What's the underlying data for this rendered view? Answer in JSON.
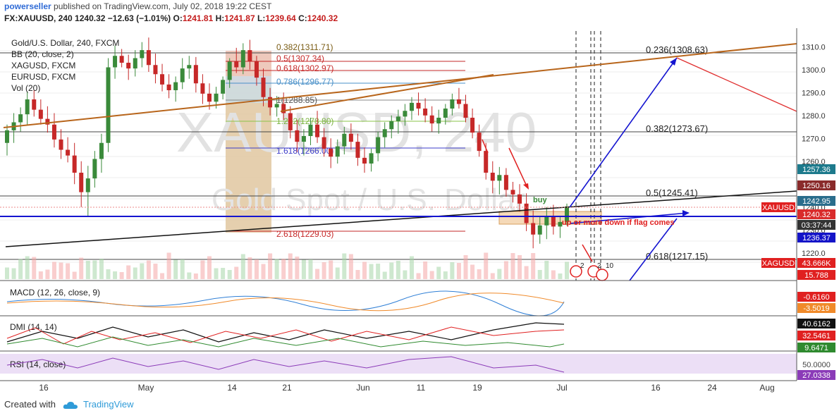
{
  "header": {
    "author": "powerseller",
    "published": "published on TradingView.com, July 02, 2018 19:22 CEST",
    "symbol": "FX:XAUUSD, 240",
    "last": "1240.32",
    "change": "−12.63 (−1.01%)",
    "o_label": "O:",
    "o": "1241.81",
    "h_label": "H:",
    "h": "1241.87",
    "l_label": "L:",
    "l": "1239.64",
    "c_label": "C:",
    "c": "1240.32"
  },
  "legend": [
    "Gold/U.S. Dollar, 240, FXCM",
    "BB (20, close, 2)",
    "XAGUSD, FXCM",
    "EURUSD, FXCM",
    "Vol (20)"
  ],
  "watermark": {
    "symbol": "XAUUSD, 240",
    "name": "Gold Spot / U.S. Dollar"
  },
  "colors": {
    "up": "#3a8a3a",
    "down": "#c62828",
    "fib": "#e0c080",
    "trend_brown": "#b8651b",
    "trend_blue": "#1414d0",
    "accent": "#2f9bd8"
  },
  "fib_left": [
    "0.382(1311.71)",
    "0.5(1307.34)",
    "0.618(1302.97)",
    "0.786(1296.77)",
    "1(1288.85)",
    "1.272(1278.80)",
    "1.618(1266.00)",
    "2.618(1229.03)"
  ],
  "fib_right": [
    "0.236(1308.63)",
    "0.382(1273.67)",
    "0.5(1245.41)",
    "0.618(1217.15)"
  ],
  "annotations": {
    "buy": "buy",
    "note": "up or more down if flag comes"
  },
  "event_labels": [
    "2",
    "2",
    "10"
  ],
  "price_tags": [
    {
      "text": "1257.36",
      "bg": "#1d7a8c"
    },
    {
      "text": "1250.16",
      "bg": "#8a2b2b"
    },
    {
      "text": "1242.95",
      "bg": "#2a6d8c"
    },
    {
      "text": "1240.32",
      "bg": "#d92b2b"
    },
    {
      "text": "03:37:44",
      "bg": "#333333"
    },
    {
      "text": "1236.37",
      "bg": "#1414c8"
    },
    {
      "text": "43.666K",
      "bg": "#e02020"
    },
    {
      "text": "15.788",
      "bg": "#e02020"
    }
  ],
  "side_tags": [
    "XAUUSD",
    "XAGUSD"
  ],
  "indicators": {
    "macd": {
      "label": "MACD (12, 26, close, 9)",
      "values": [
        "-0.6160",
        "-3.5019"
      ]
    },
    "dmi": {
      "label": "DMI (14, 14)",
      "values": [
        "40.6162",
        "32.5461",
        "9.6471"
      ]
    },
    "rsi": {
      "label": "RSI (14, close)",
      "values": [
        "50.0000",
        "27.0338"
      ]
    }
  },
  "footer": {
    "created_with": "Created with",
    "brand": "TradingView"
  },
  "chart_data": {
    "type": "candlestick",
    "x_ticks": [
      "16",
      "May",
      "14",
      "21",
      "Jun",
      "11",
      "19",
      "Jul",
      "16",
      "24",
      "Aug"
    ],
    "y_ticks": [
      1310.0,
      1300.0,
      1290.0,
      1280.0,
      1270.0,
      1260.0,
      1250.0,
      1240.0,
      1230.0,
      1220.0
    ],
    "y_range": [
      1215,
      1315
    ],
    "candles": [
      [
        1268.0,
        1276.0,
        1262.5,
        1273.5
      ],
      [
        1273.5,
        1281.0,
        1268.0,
        1277.0
      ],
      [
        1277.0,
        1283.5,
        1273.0,
        1280.5
      ],
      [
        1280.5,
        1290.5,
        1276.0,
        1287.0
      ],
      [
        1287.0,
        1291.0,
        1279.5,
        1282.5
      ],
      [
        1282.5,
        1287.0,
        1276.0,
        1278.5
      ],
      [
        1278.5,
        1284.0,
        1272.5,
        1276.0
      ],
      [
        1276.0,
        1281.0,
        1266.0,
        1269.5
      ],
      [
        1269.5,
        1274.0,
        1261.0,
        1265.0
      ],
      [
        1265.0,
        1270.5,
        1259.5,
        1262.5
      ],
      [
        1262.5,
        1268.0,
        1250.0,
        1255.0
      ],
      [
        1255.0,
        1260.0,
        1240.0,
        1246.5
      ],
      [
        1246.5,
        1258.0,
        1236.0,
        1252.5
      ],
      [
        1252.5,
        1264.5,
        1248.5,
        1261.0
      ],
      [
        1261.0,
        1272.0,
        1255.0,
        1268.0
      ],
      [
        1268.0,
        1305.0,
        1264.0,
        1301.0
      ],
      [
        1301.0,
        1310.5,
        1296.0,
        1306.0
      ],
      [
        1306.0,
        1309.0,
        1301.0,
        1303.0
      ],
      [
        1303.0,
        1306.5,
        1295.5,
        1300.5
      ],
      [
        1300.5,
        1308.5,
        1297.0,
        1305.0
      ],
      [
        1305.0,
        1312.0,
        1301.0,
        1308.5
      ],
      [
        1308.5,
        1314.0,
        1299.0,
        1302.0
      ],
      [
        1302.0,
        1307.0,
        1294.0,
        1298.0
      ],
      [
        1298.0,
        1302.5,
        1290.5,
        1293.5
      ],
      [
        1293.5,
        1298.0,
        1287.5,
        1291.0
      ],
      [
        1291.0,
        1297.0,
        1286.0,
        1294.5
      ],
      [
        1294.5,
        1305.0,
        1291.5,
        1300.5
      ],
      [
        1300.5,
        1306.0,
        1296.0,
        1302.0
      ],
      [
        1302.0,
        1305.5,
        1290.0,
        1294.0
      ],
      [
        1294.0,
        1298.0,
        1285.0,
        1289.5
      ],
      [
        1289.5,
        1294.0,
        1282.5,
        1286.0
      ],
      [
        1286.0,
        1292.5,
        1283.0,
        1289.5
      ],
      [
        1289.5,
        1297.0,
        1287.0,
        1295.5
      ],
      [
        1295.5,
        1305.0,
        1292.0,
        1303.5
      ],
      [
        1303.5,
        1309.5,
        1298.5,
        1301.0
      ],
      [
        1301.0,
        1311.5,
        1298.0,
        1308.5
      ],
      [
        1308.5,
        1313.0,
        1300.0,
        1303.5
      ],
      [
        1303.5,
        1306.0,
        1293.0,
        1296.5
      ],
      [
        1296.5,
        1300.5,
        1284.0,
        1288.0
      ],
      [
        1288.0,
        1292.0,
        1280.0,
        1283.5
      ],
      [
        1283.5,
        1288.5,
        1279.5,
        1285.0
      ],
      [
        1285.0,
        1290.0,
        1278.0,
        1281.0
      ],
      [
        1281.0,
        1284.0,
        1270.0,
        1273.5
      ],
      [
        1273.5,
        1278.0,
        1264.0,
        1268.5
      ],
      [
        1268.5,
        1274.0,
        1262.5,
        1271.0
      ],
      [
        1271.0,
        1279.0,
        1267.0,
        1276.0
      ],
      [
        1276.0,
        1282.0,
        1268.0,
        1270.5
      ],
      [
        1270.5,
        1274.5,
        1262.0,
        1265.5
      ],
      [
        1265.5,
        1270.0,
        1257.0,
        1262.0
      ],
      [
        1262.0,
        1269.5,
        1259.0,
        1266.5
      ],
      [
        1266.5,
        1275.0,
        1263.0,
        1272.0
      ],
      [
        1272.0,
        1276.5,
        1265.0,
        1268.5
      ],
      [
        1268.5,
        1272.0,
        1258.0,
        1261.5
      ],
      [
        1261.5,
        1266.0,
        1255.0,
        1259.0
      ],
      [
        1259.0,
        1265.5,
        1255.5,
        1263.5
      ],
      [
        1263.5,
        1273.0,
        1260.0,
        1270.5
      ],
      [
        1270.5,
        1277.0,
        1266.0,
        1274.0
      ],
      [
        1274.0,
        1280.0,
        1270.0,
        1277.5
      ],
      [
        1277.5,
        1282.5,
        1272.0,
        1279.5
      ],
      [
        1279.5,
        1285.0,
        1275.5,
        1282.0
      ],
      [
        1282.0,
        1288.0,
        1278.0,
        1285.5
      ],
      [
        1285.5,
        1290.0,
        1280.0,
        1283.0
      ],
      [
        1283.0,
        1287.5,
        1277.0,
        1280.0
      ],
      [
        1280.0,
        1284.0,
        1273.0,
        1276.5
      ],
      [
        1276.5,
        1282.5,
        1272.0,
        1279.0
      ],
      [
        1279.0,
        1285.0,
        1276.0,
        1283.0
      ],
      [
        1283.0,
        1289.5,
        1280.0,
        1287.0
      ],
      [
        1287.0,
        1292.0,
        1283.0,
        1285.0
      ],
      [
        1285.0,
        1289.0,
        1277.0,
        1279.0
      ],
      [
        1279.0,
        1283.0,
        1270.0,
        1272.5
      ],
      [
        1272.5,
        1276.0,
        1262.0,
        1264.5
      ],
      [
        1264.5,
        1268.0,
        1252.0,
        1255.0
      ],
      [
        1255.0,
        1260.0,
        1246.0,
        1251.5
      ],
      [
        1251.5,
        1257.5,
        1245.5,
        1254.0
      ],
      [
        1254.0,
        1257.0,
        1244.5,
        1247.5
      ],
      [
        1247.5,
        1251.0,
        1242.0,
        1245.5
      ],
      [
        1245.5,
        1250.0,
        1238.0,
        1241.5
      ],
      [
        1241.5,
        1246.0,
        1229.5,
        1233.0
      ],
      [
        1233.0,
        1238.5,
        1222.0,
        1228.0
      ],
      [
        1228.0,
        1236.0,
        1224.0,
        1232.0
      ],
      [
        1232.0,
        1240.0,
        1226.0,
        1236.0
      ],
      [
        1236.0,
        1241.0,
        1228.0,
        1231.5
      ],
      [
        1231.5,
        1236.0,
        1226.5,
        1233.5
      ],
      [
        1233.5,
        1241.5,
        1232.0,
        1240.3
      ]
    ],
    "fib_levels": [
      {
        "label": "0.382(1311.71)",
        "value": 1311.71
      },
      {
        "label": "0.5(1307.34)",
        "value": 1307.34
      },
      {
        "label": "0.618(1302.97)",
        "value": 1302.97
      },
      {
        "label": "0.786(1296.77)",
        "value": 1296.77
      },
      {
        "label": "1(1288.85)",
        "value": 1288.85
      },
      {
        "label": "1.272(1278.80)",
        "value": 1278.8
      },
      {
        "label": "1.618(1266.00)",
        "value": 1266.0
      },
      {
        "label": "2.618(1229.03)",
        "value": 1229.03
      },
      {
        "label": "0.236(1308.63)",
        "value": 1308.63
      },
      {
        "label": "0.382(1273.67)",
        "value": 1273.67
      },
      {
        "label": "0.5(1245.41)",
        "value": 1245.41
      },
      {
        "label": "0.618(1217.15)",
        "value": 1217.15
      }
    ],
    "last_price": 1240.32,
    "grid": true
  }
}
